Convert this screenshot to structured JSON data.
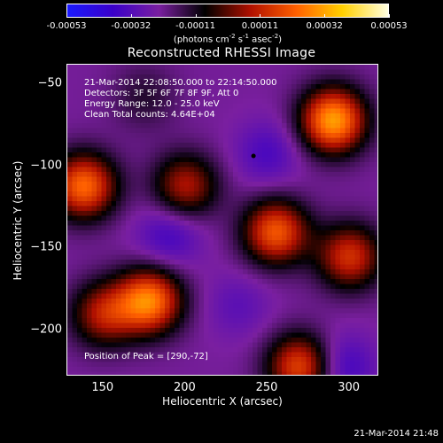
{
  "colorbar": {
    "ticks": [
      "-0.00053",
      "-0.00032",
      "-0.00011",
      "0.00011",
      "0.00032",
      "0.00053"
    ],
    "unit_prefix": "(photons cm",
    "unit_exp1": "-2",
    "unit_mid1": " s",
    "unit_exp2": "-1",
    "unit_mid2": " asec",
    "unit_exp3": "-2",
    "unit_suffix": ")",
    "colors": [
      "#1a1aff",
      "#3a00c8",
      "#7a1fa0",
      "#000000",
      "#b01000",
      "#ff6000",
      "#ffd000",
      "#ffffe0"
    ]
  },
  "title": "Reconstructed RHESSI Image",
  "info": {
    "line1": "21-Mar-2014 22:08:50.000 to 22:14:50.000",
    "line2": "Detectors: 3F 5F 6F 7F 8F 9F, Att 0",
    "line3": "Energy Range: 12.0 - 25.0 keV",
    "line4": "Clean     Total counts: 4.64E+04"
  },
  "peak": "Position of Peak = [290,-72]",
  "xlabel": "Heliocentric X (arcsec)",
  "ylabel": "Heliocentric Y (arcsec)",
  "timestamp": "21-Mar-2014 21:48",
  "chart_data": {
    "type": "heatmap",
    "title": "Reconstructed RHESSI Image",
    "xlabel": "Heliocentric X (arcsec)",
    "ylabel": "Heliocentric Y (arcsec)",
    "xlim": [
      128,
      318
    ],
    "ylim": [
      -228,
      -38
    ],
    "xticks": [
      150,
      200,
      250,
      300
    ],
    "yticks": [
      -50,
      -100,
      -150,
      -200
    ],
    "zlim": [
      -0.00053,
      0.00053
    ],
    "peak_position": [
      290,
      -72
    ],
    "sources": [
      {
        "x": 290,
        "y": -72,
        "value": 0.00053
      },
      {
        "x": 255,
        "y": -140,
        "value": 0.00042
      },
      {
        "x": 300,
        "y": -155,
        "value": 0.00035
      },
      {
        "x": 200,
        "y": -112,
        "value": 0.0003
      },
      {
        "x": 138,
        "y": -112,
        "value": 0.00045
      },
      {
        "x": 178,
        "y": -182,
        "value": 0.00048
      },
      {
        "x": 150,
        "y": -190,
        "value": 0.0003
      },
      {
        "x": 270,
        "y": -222,
        "value": 0.0004
      },
      {
        "x": 175,
        "y": -58,
        "value": 0.0001
      },
      {
        "x": 250,
        "y": -92,
        "value": -0.00012
      },
      {
        "x": 190,
        "y": -142,
        "value": -0.00014
      },
      {
        "x": 232,
        "y": -185,
        "value": -8e-05
      },
      {
        "x": 295,
        "y": -222,
        "value": -0.00016
      }
    ]
  }
}
